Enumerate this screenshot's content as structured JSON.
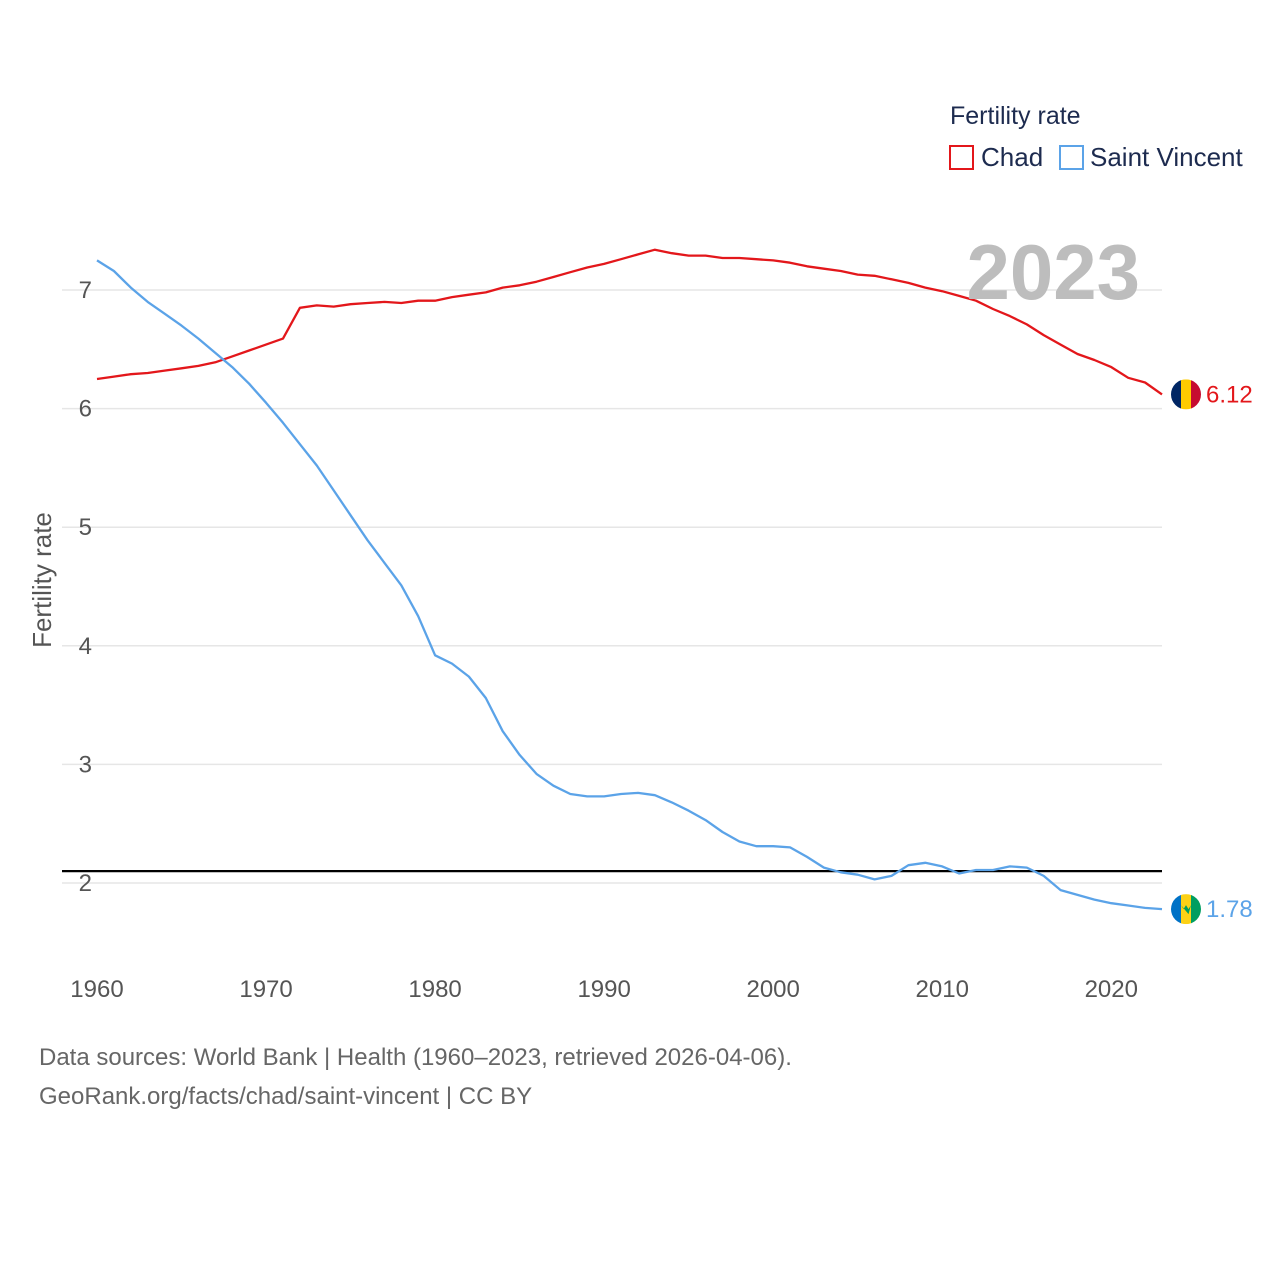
{
  "chart_data": {
    "type": "line",
    "year_label": "2023",
    "ylabel": "Fertility rate",
    "xlabel": "",
    "ylim": [
      1.3,
      7.6
    ],
    "xlim": [
      1960,
      2023
    ],
    "yticks": [
      2,
      3,
      4,
      5,
      6,
      7
    ],
    "xticks": [
      1960,
      1970,
      1980,
      1990,
      2000,
      2010,
      2020
    ],
    "reference_line": 2.1,
    "legend": {
      "title": "Fertility rate",
      "position": "top-right"
    },
    "series": [
      {
        "name": "Chad",
        "color": "#e3171b",
        "end_label": "6.12",
        "x": [
          1960,
          1961,
          1962,
          1963,
          1964,
          1965,
          1966,
          1967,
          1968,
          1969,
          1970,
          1971,
          1972,
          1973,
          1974,
          1975,
          1976,
          1977,
          1978,
          1979,
          1980,
          1981,
          1982,
          1983,
          1984,
          1985,
          1986,
          1987,
          1988,
          1989,
          1990,
          1991,
          1992,
          1993,
          1994,
          1995,
          1996,
          1997,
          1998,
          1999,
          2000,
          2001,
          2002,
          2003,
          2004,
          2005,
          2006,
          2007,
          2008,
          2009,
          2010,
          2011,
          2012,
          2013,
          2014,
          2015,
          2016,
          2017,
          2018,
          2019,
          2020,
          2021,
          2022,
          2023
        ],
        "values": [
          6.25,
          6.27,
          6.29,
          6.3,
          6.32,
          6.34,
          6.36,
          6.39,
          6.44,
          6.49,
          6.54,
          6.59,
          6.85,
          6.87,
          6.86,
          6.88,
          6.89,
          6.9,
          6.89,
          6.91,
          6.91,
          6.94,
          6.96,
          6.98,
          7.02,
          7.04,
          7.07,
          7.11,
          7.15,
          7.19,
          7.22,
          7.26,
          7.3,
          7.34,
          7.31,
          7.29,
          7.29,
          7.27,
          7.27,
          7.26,
          7.25,
          7.23,
          7.2,
          7.18,
          7.16,
          7.13,
          7.12,
          7.09,
          7.06,
          7.02,
          6.99,
          6.95,
          6.91,
          6.84,
          6.78,
          6.71,
          6.62,
          6.54,
          6.46,
          6.41,
          6.35,
          6.26,
          6.22,
          6.12
        ]
      },
      {
        "name": "Saint Vincent",
        "color": "#5ba3e8",
        "end_label": "1.78",
        "x": [
          1960,
          1961,
          1962,
          1963,
          1964,
          1965,
          1966,
          1967,
          1968,
          1969,
          1970,
          1971,
          1972,
          1973,
          1974,
          1975,
          1976,
          1977,
          1978,
          1979,
          1980,
          1981,
          1982,
          1983,
          1984,
          1985,
          1986,
          1987,
          1988,
          1989,
          1990,
          1991,
          1992,
          1993,
          1994,
          1995,
          1996,
          1997,
          1998,
          1999,
          2000,
          2001,
          2002,
          2003,
          2004,
          2005,
          2006,
          2007,
          2008,
          2009,
          2010,
          2011,
          2012,
          2013,
          2014,
          2015,
          2016,
          2017,
          2018,
          2019,
          2020,
          2021,
          2022,
          2023
        ],
        "values": [
          7.25,
          7.16,
          7.02,
          6.9,
          6.8,
          6.7,
          6.59,
          6.47,
          6.35,
          6.21,
          6.05,
          5.88,
          5.7,
          5.52,
          5.31,
          5.1,
          4.89,
          4.7,
          4.51,
          4.25,
          3.92,
          3.85,
          3.74,
          3.56,
          3.28,
          3.08,
          2.92,
          2.82,
          2.75,
          2.73,
          2.73,
          2.75,
          2.76,
          2.74,
          2.68,
          2.61,
          2.53,
          2.43,
          2.35,
          2.31,
          2.31,
          2.3,
          2.22,
          2.13,
          2.09,
          2.07,
          2.03,
          2.06,
          2.15,
          2.17,
          2.14,
          2.08,
          2.11,
          2.11,
          2.14,
          2.13,
          2.06,
          1.94,
          1.9,
          1.86,
          1.83,
          1.81,
          1.79,
          1.78
        ]
      }
    ]
  },
  "footer": {
    "line1": "Data sources: World Bank | Health (1960–2023, retrieved 2026-04-06).",
    "line2": "GeoRank.org/facts/chad/saint-vincent | CC BY"
  }
}
